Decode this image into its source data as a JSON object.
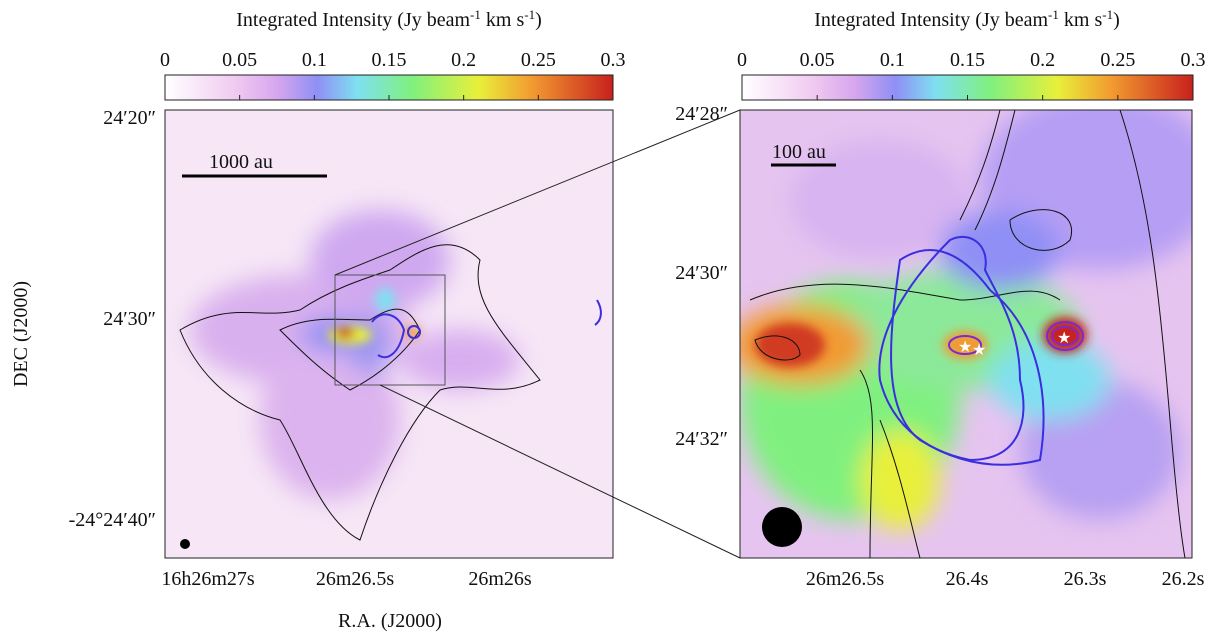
{
  "panels": [
    {
      "colorbar": {
        "title": [
          "Integrated Intensity (Jy beam",
          "-1",
          " km s",
          "-1",
          ")"
        ],
        "lim": [
          0,
          0.3
        ],
        "ticks": [
          0,
          0.05,
          0.1,
          0.15,
          0.2,
          0.25,
          0.3
        ]
      },
      "yticks": [
        "24′20″",
        "24′30″",
        "-24°24′40″"
      ],
      "xticks": [
        "16h26m27s",
        "26m26.5s",
        "26m26s"
      ],
      "ylabel": "DEC (J2000)",
      "xlabel": "R.A. (J2000)",
      "scalebar": "1000 au"
    },
    {
      "colorbar": {
        "title": [
          "Integrated Intensity (Jy beam",
          "-1",
          " km s",
          "-1",
          ")"
        ],
        "lim": [
          0,
          0.3
        ],
        "ticks": [
          0,
          0.05,
          0.1,
          0.15,
          0.2,
          0.25,
          0.3
        ]
      },
      "yticks": [
        "24′28″",
        "24′30″",
        "24′32″"
      ],
      "xticks": [
        "26m26.5s",
        "26.4s",
        "26.3s",
        "26.2s"
      ],
      "scalebar": "100 au"
    }
  ]
}
